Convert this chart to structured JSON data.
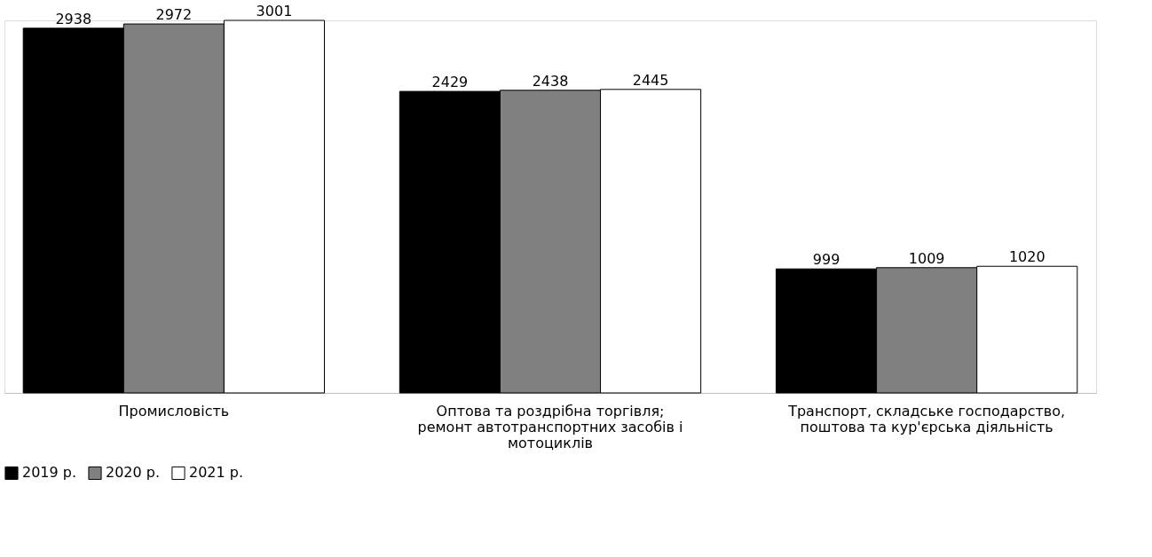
{
  "chart_data": {
    "type": "bar",
    "categories": [
      "Промисловість",
      "Оптова та роздрібна торгівля; ремонт автотранспортних засобів і мотоциклів",
      "Транспорт, складське господарство, поштова та кур'єрська діяльність"
    ],
    "series": [
      {
        "name": "2019 р.",
        "color": "#000000",
        "values": [
          2938,
          2429,
          999
        ]
      },
      {
        "name": "2020 р.",
        "color": "#808080",
        "values": [
          2972,
          2438,
          1009
        ]
      },
      {
        "name": "2021 р.",
        "color": "#ffffff",
        "values": [
          3001,
          2445,
          1020
        ]
      }
    ],
    "data_labels": true,
    "legend": "bottom",
    "grid": false,
    "tick_labels": "x"
  }
}
